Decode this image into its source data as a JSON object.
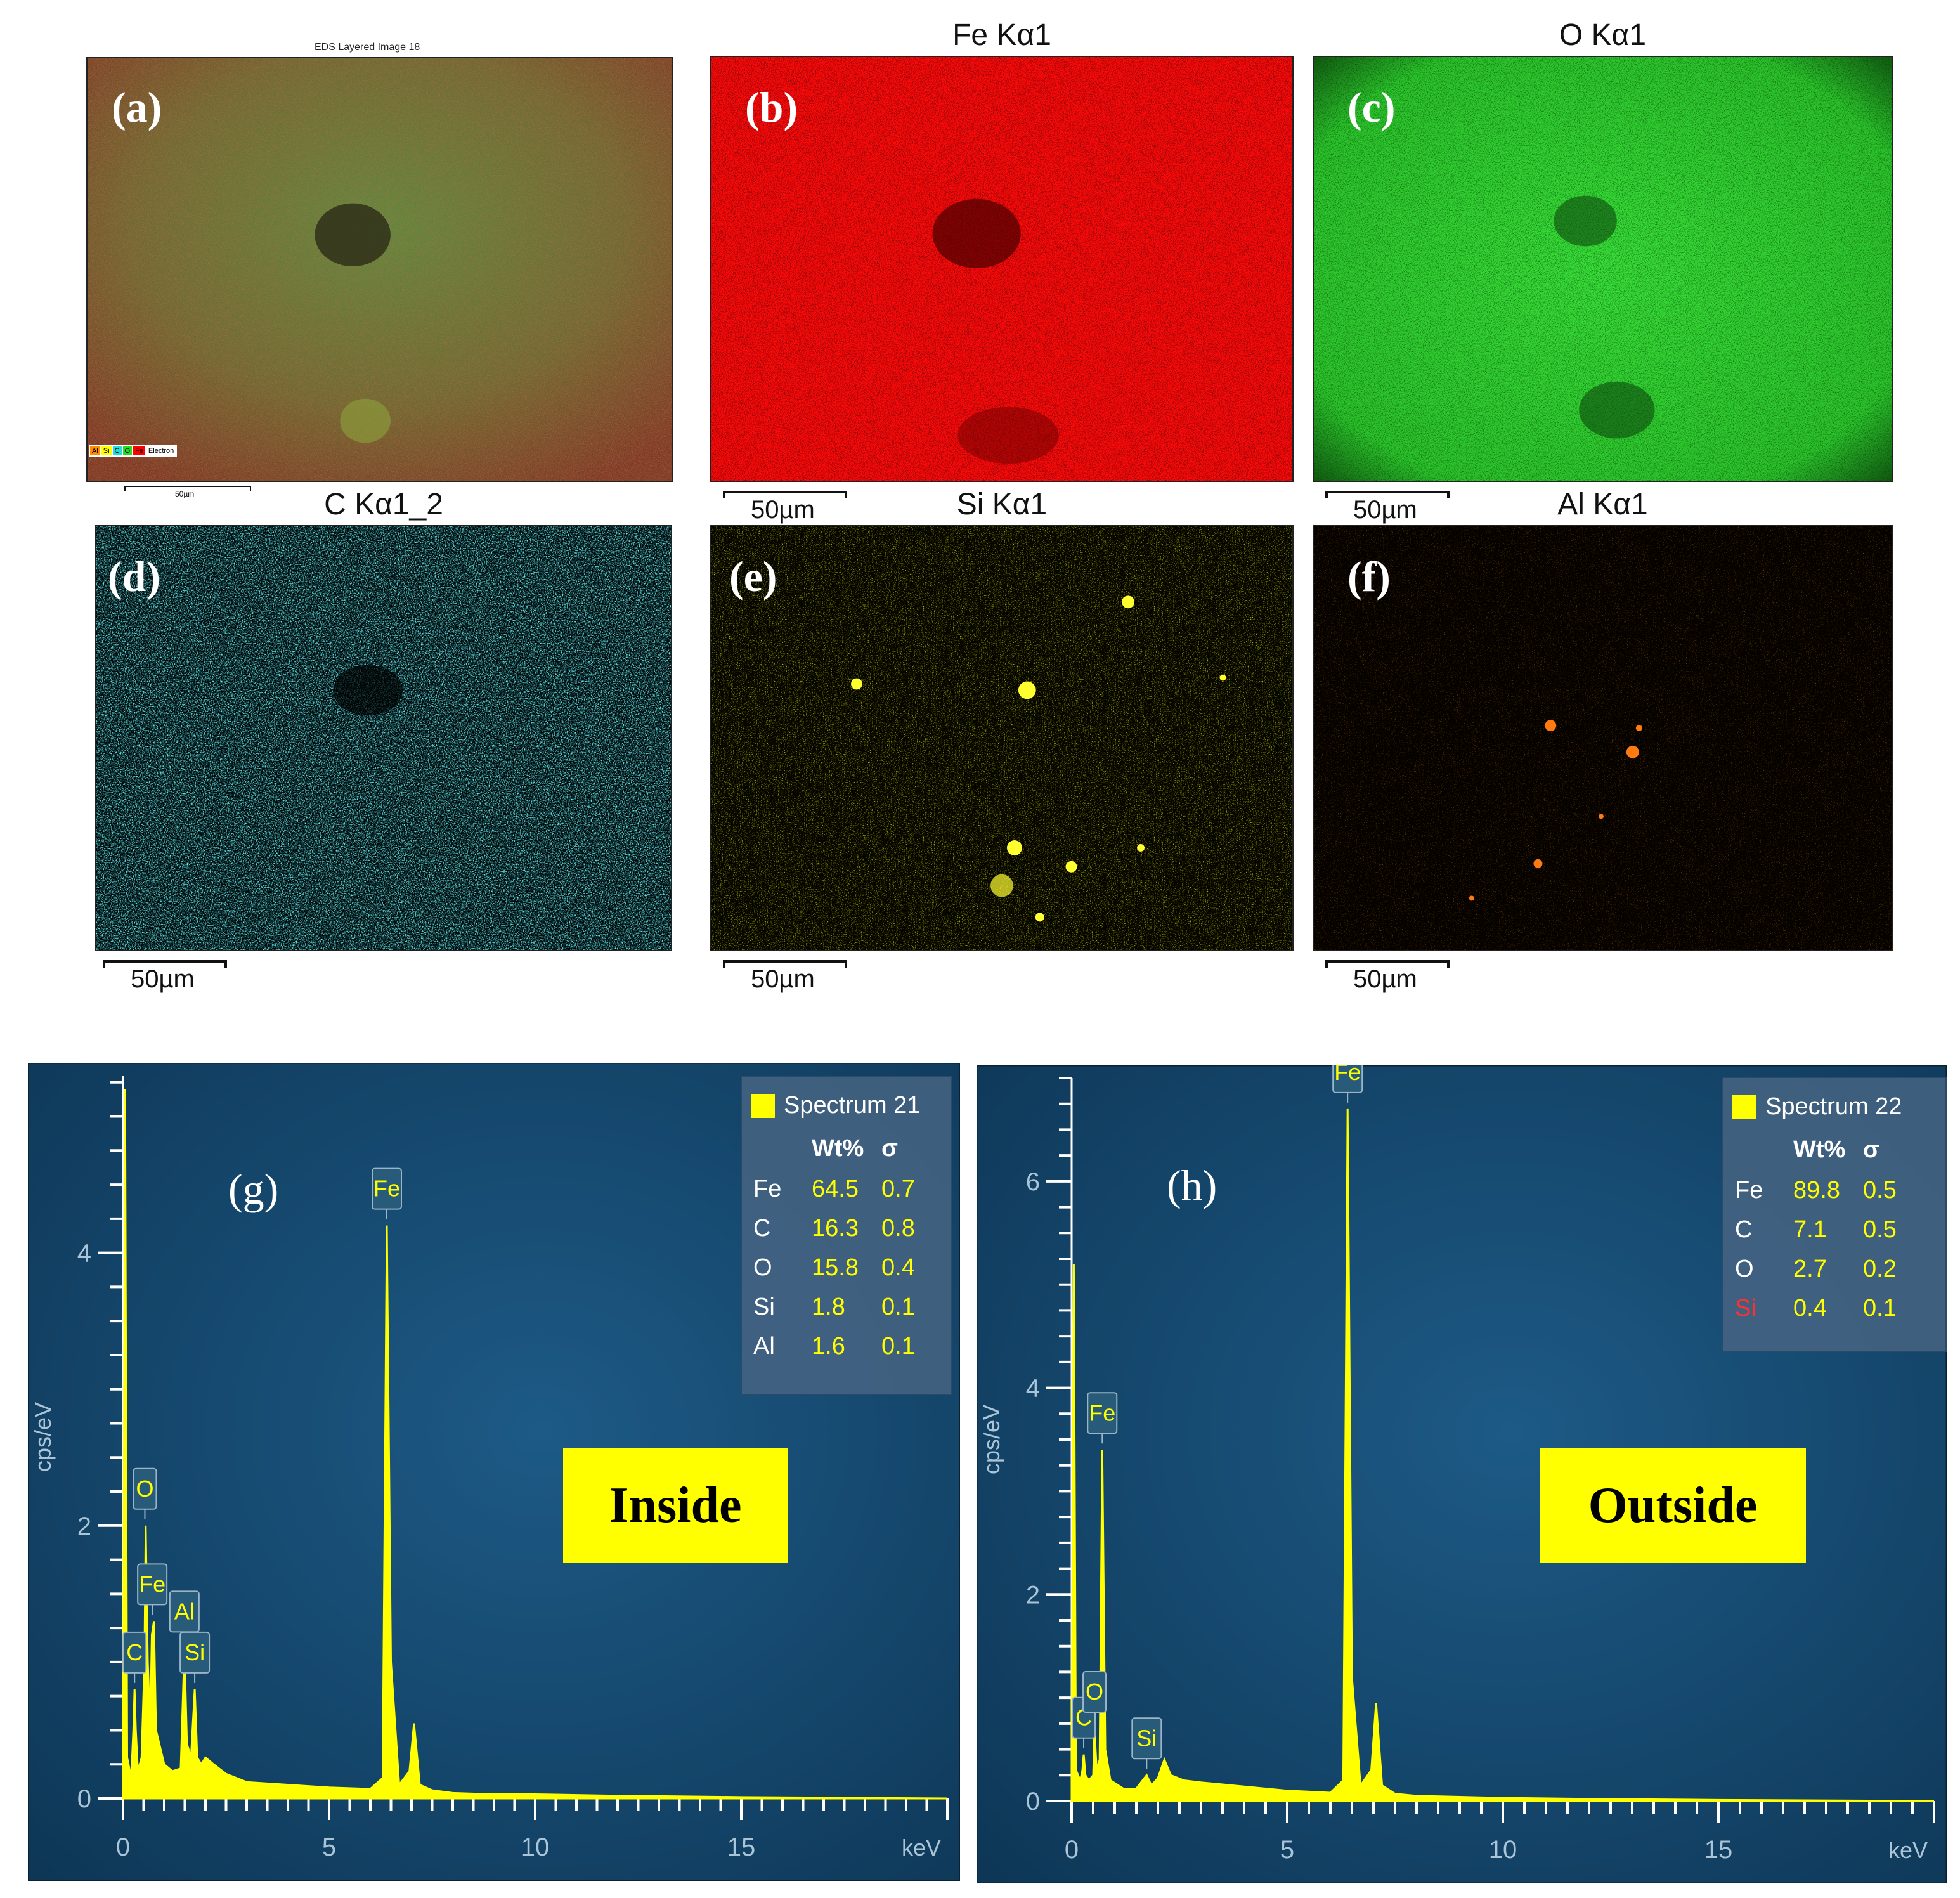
{
  "maps": [
    {
      "id": "a",
      "letter": "(a)",
      "title": "",
      "small_title": "EDS Layered Image 18",
      "scale": "50µm",
      "legend": [
        "Al",
        "Si",
        "C",
        "O",
        "Fe",
        "Electron"
      ]
    },
    {
      "id": "b",
      "letter": "(b)",
      "title": "Fe Kα1",
      "scale": "50µm",
      "color": "#ff0000"
    },
    {
      "id": "c",
      "letter": "(c)",
      "title": "O Kα1",
      "scale": "50µm",
      "color": "#22dd22"
    },
    {
      "id": "d",
      "letter": "(d)",
      "title": "C Kα1_2",
      "scale": "50µm",
      "color": "#22dddd"
    },
    {
      "id": "e",
      "letter": "(e)",
      "title": "Si Kα1",
      "scale": "50µm",
      "color": "#ffff00"
    },
    {
      "id": "f",
      "letter": "(f)",
      "title": "Al Kα1",
      "scale": "50µm",
      "color": "#ff6a00"
    }
  ],
  "chart_data": [
    {
      "type": "line",
      "panel": "(g)",
      "tag": "Inside",
      "spectrum_name": "Spectrum 21",
      "xlabel": "keV",
      "ylabel": "cps/eV",
      "xlim": [
        0,
        20
      ],
      "ylim": [
        0,
        5.3
      ],
      "xticks": [
        0,
        5,
        10,
        15
      ],
      "yticks": [
        0,
        2,
        4
      ],
      "x": [
        0.0,
        0.05,
        0.1,
        0.2,
        0.25,
        0.28,
        0.31,
        0.36,
        0.45,
        0.52,
        0.55,
        0.6,
        0.66,
        0.7,
        0.75,
        0.8,
        1.0,
        1.2,
        1.4,
        1.49,
        1.55,
        1.65,
        1.74,
        1.8,
        1.9,
        2.0,
        2.2,
        2.5,
        3.0,
        4.0,
        5.0,
        6.0,
        6.3,
        6.4,
        6.5,
        6.7,
        6.95,
        7.06,
        7.2,
        7.5,
        8.0,
        9.0,
        10.0,
        12.0,
        15.0,
        20.0
      ],
      "y": [
        0.05,
        5.2,
        0.3,
        0.15,
        0.5,
        0.8,
        0.5,
        0.2,
        0.3,
        1.0,
        2.0,
        1.0,
        0.5,
        1.2,
        1.3,
        0.5,
        0.25,
        0.2,
        0.22,
        1.1,
        0.4,
        0.3,
        0.8,
        0.3,
        0.25,
        0.3,
        0.25,
        0.18,
        0.12,
        0.1,
        0.08,
        0.07,
        0.15,
        4.2,
        1.0,
        0.1,
        0.2,
        0.55,
        0.1,
        0.06,
        0.04,
        0.03,
        0.03,
        0.02,
        0.01,
        0.0
      ],
      "peaks": [
        {
          "label": "C",
          "x": 0.28,
          "y": 0.8
        },
        {
          "label": "O",
          "x": 0.53,
          "y": 2.0
        },
        {
          "label": "Fe",
          "x": 0.71,
          "y": 1.3
        },
        {
          "label": "Al",
          "x": 1.49,
          "y": 1.1
        },
        {
          "label": "Si",
          "x": 1.74,
          "y": 0.8
        },
        {
          "label": "Fe",
          "x": 6.4,
          "y": 4.2
        }
      ],
      "table": {
        "headers": [
          "",
          "Wt%",
          "σ"
        ],
        "rows": [
          {
            "el": "Fe",
            "wt": "64.5",
            "sigma": "0.7",
            "highlight": false
          },
          {
            "el": "C",
            "wt": "16.3",
            "sigma": "0.8",
            "highlight": false
          },
          {
            "el": "O",
            "wt": "15.8",
            "sigma": "0.4",
            "highlight": false
          },
          {
            "el": "Si",
            "wt": "1.8",
            "sigma": "0.1",
            "highlight": false
          },
          {
            "el": "Al",
            "wt": "1.6",
            "sigma": "0.1",
            "highlight": false
          }
        ]
      }
    },
    {
      "type": "line",
      "panel": "(h)",
      "tag": "Outside",
      "spectrum_name": "Spectrum 22",
      "xlabel": "keV",
      "ylabel": "cps/eV",
      "xlim": [
        0,
        20
      ],
      "ylim": [
        0,
        7.0
      ],
      "xticks": [
        0,
        5,
        10,
        15
      ],
      "yticks": [
        0,
        2,
        4,
        6
      ],
      "x": [
        0.0,
        0.05,
        0.1,
        0.2,
        0.25,
        0.28,
        0.32,
        0.4,
        0.5,
        0.53,
        0.58,
        0.65,
        0.71,
        0.78,
        0.9,
        1.2,
        1.5,
        1.74,
        1.85,
        2.0,
        2.15,
        2.3,
        2.6,
        3.0,
        4.0,
        5.0,
        6.0,
        6.3,
        6.4,
        6.5,
        6.7,
        6.95,
        7.06,
        7.2,
        7.5,
        8.0,
        9.0,
        10.0,
        12.0,
        15.0,
        20.0
      ],
      "y": [
        0.05,
        5.2,
        0.3,
        0.2,
        0.3,
        0.45,
        0.25,
        0.2,
        0.25,
        0.7,
        0.3,
        0.4,
        3.4,
        0.5,
        0.2,
        0.12,
        0.12,
        0.25,
        0.15,
        0.22,
        0.4,
        0.25,
        0.2,
        0.18,
        0.14,
        0.1,
        0.08,
        0.2,
        6.7,
        1.2,
        0.15,
        0.3,
        0.95,
        0.15,
        0.07,
        0.05,
        0.04,
        0.03,
        0.02,
        0.01,
        0.0
      ],
      "peaks": [
        {
          "label": "C",
          "x": 0.28,
          "y": 0.45
        },
        {
          "label": "O",
          "x": 0.53,
          "y": 0.7
        },
        {
          "label": "Fe",
          "x": 0.71,
          "y": 3.4
        },
        {
          "label": "Si",
          "x": 1.74,
          "y": 0.25
        },
        {
          "label": "Fe",
          "x": 6.4,
          "y": 6.7
        }
      ],
      "table": {
        "headers": [
          "",
          "Wt%",
          "σ"
        ],
        "rows": [
          {
            "el": "Fe",
            "wt": "89.8",
            "sigma": "0.5",
            "highlight": false
          },
          {
            "el": "C",
            "wt": "7.1",
            "sigma": "0.5",
            "highlight": false
          },
          {
            "el": "O",
            "wt": "2.7",
            "sigma": "0.2",
            "highlight": false
          },
          {
            "el": "Si",
            "wt": "0.4",
            "sigma": "0.1",
            "highlight": true
          }
        ]
      }
    }
  ]
}
